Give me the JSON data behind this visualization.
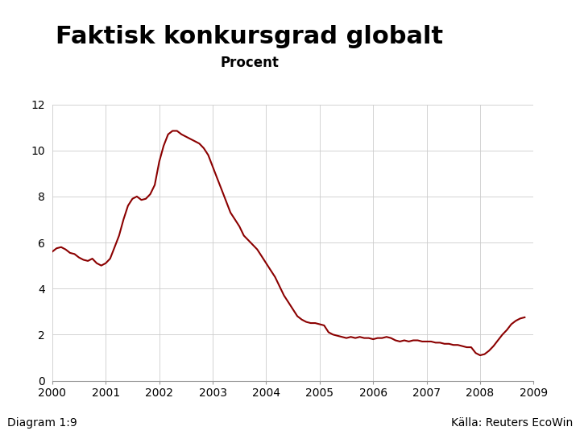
{
  "title": "Faktisk konkursgrad globalt",
  "subtitle": "Procent",
  "line_color": "#8B0000",
  "line_width": 1.5,
  "background_color": "#ffffff",
  "plot_bg_color": "#ffffff",
  "grid_color": "#cccccc",
  "ylim": [
    0,
    12
  ],
  "yticks": [
    0,
    2,
    4,
    6,
    8,
    10,
    12
  ],
  "footer_bar_color": "#1a3a8a",
  "footer_text_left": "Diagram 1:9",
  "footer_text_right": "Källa: Reuters EcoWin",
  "footer_fontsize": 10,
  "title_fontsize": 22,
  "subtitle_fontsize": 12,
  "logo_bg_color": "#1a3a8a",
  "x_data": [
    2000.0,
    2000.083,
    2000.167,
    2000.25,
    2000.333,
    2000.417,
    2000.5,
    2000.583,
    2000.667,
    2000.75,
    2000.833,
    2000.917,
    2001.0,
    2001.083,
    2001.167,
    2001.25,
    2001.333,
    2001.417,
    2001.5,
    2001.583,
    2001.667,
    2001.75,
    2001.833,
    2001.917,
    2002.0,
    2002.083,
    2002.167,
    2002.25,
    2002.333,
    2002.417,
    2002.5,
    2002.583,
    2002.667,
    2002.75,
    2002.833,
    2002.917,
    2003.0,
    2003.083,
    2003.167,
    2003.25,
    2003.333,
    2003.417,
    2003.5,
    2003.583,
    2003.667,
    2003.75,
    2003.833,
    2003.917,
    2004.0,
    2004.083,
    2004.167,
    2004.25,
    2004.333,
    2004.417,
    2004.5,
    2004.583,
    2004.667,
    2004.75,
    2004.833,
    2004.917,
    2005.0,
    2005.083,
    2005.167,
    2005.25,
    2005.333,
    2005.417,
    2005.5,
    2005.583,
    2005.667,
    2005.75,
    2005.833,
    2005.917,
    2006.0,
    2006.083,
    2006.167,
    2006.25,
    2006.333,
    2006.417,
    2006.5,
    2006.583,
    2006.667,
    2006.75,
    2006.833,
    2006.917,
    2007.0,
    2007.083,
    2007.167,
    2007.25,
    2007.333,
    2007.417,
    2007.5,
    2007.583,
    2007.667,
    2007.75,
    2007.833,
    2007.917,
    2008.0,
    2008.083,
    2008.167,
    2008.25,
    2008.333,
    2008.417,
    2008.5,
    2008.583,
    2008.667,
    2008.75,
    2008.833
  ],
  "y_data": [
    5.6,
    5.75,
    5.8,
    5.7,
    5.55,
    5.5,
    5.35,
    5.25,
    5.2,
    5.3,
    5.1,
    5.0,
    5.1,
    5.3,
    5.8,
    6.3,
    7.0,
    7.6,
    7.9,
    8.0,
    7.85,
    7.9,
    8.1,
    8.5,
    9.5,
    10.2,
    10.7,
    10.85,
    10.85,
    10.7,
    10.6,
    10.5,
    10.4,
    10.3,
    10.1,
    9.8,
    9.3,
    8.8,
    8.3,
    7.8,
    7.3,
    7.0,
    6.7,
    6.3,
    6.1,
    5.9,
    5.7,
    5.4,
    5.1,
    4.8,
    4.5,
    4.1,
    3.7,
    3.4,
    3.1,
    2.8,
    2.65,
    2.55,
    2.5,
    2.5,
    2.45,
    2.4,
    2.1,
    2.0,
    1.95,
    1.9,
    1.85,
    1.9,
    1.85,
    1.9,
    1.85,
    1.85,
    1.8,
    1.85,
    1.85,
    1.9,
    1.85,
    1.75,
    1.7,
    1.75,
    1.7,
    1.75,
    1.75,
    1.7,
    1.7,
    1.7,
    1.65,
    1.65,
    1.6,
    1.6,
    1.55,
    1.55,
    1.5,
    1.45,
    1.45,
    1.2,
    1.1,
    1.15,
    1.3,
    1.5,
    1.75,
    2.0,
    2.2,
    2.45,
    2.6,
    2.7,
    2.75
  ]
}
